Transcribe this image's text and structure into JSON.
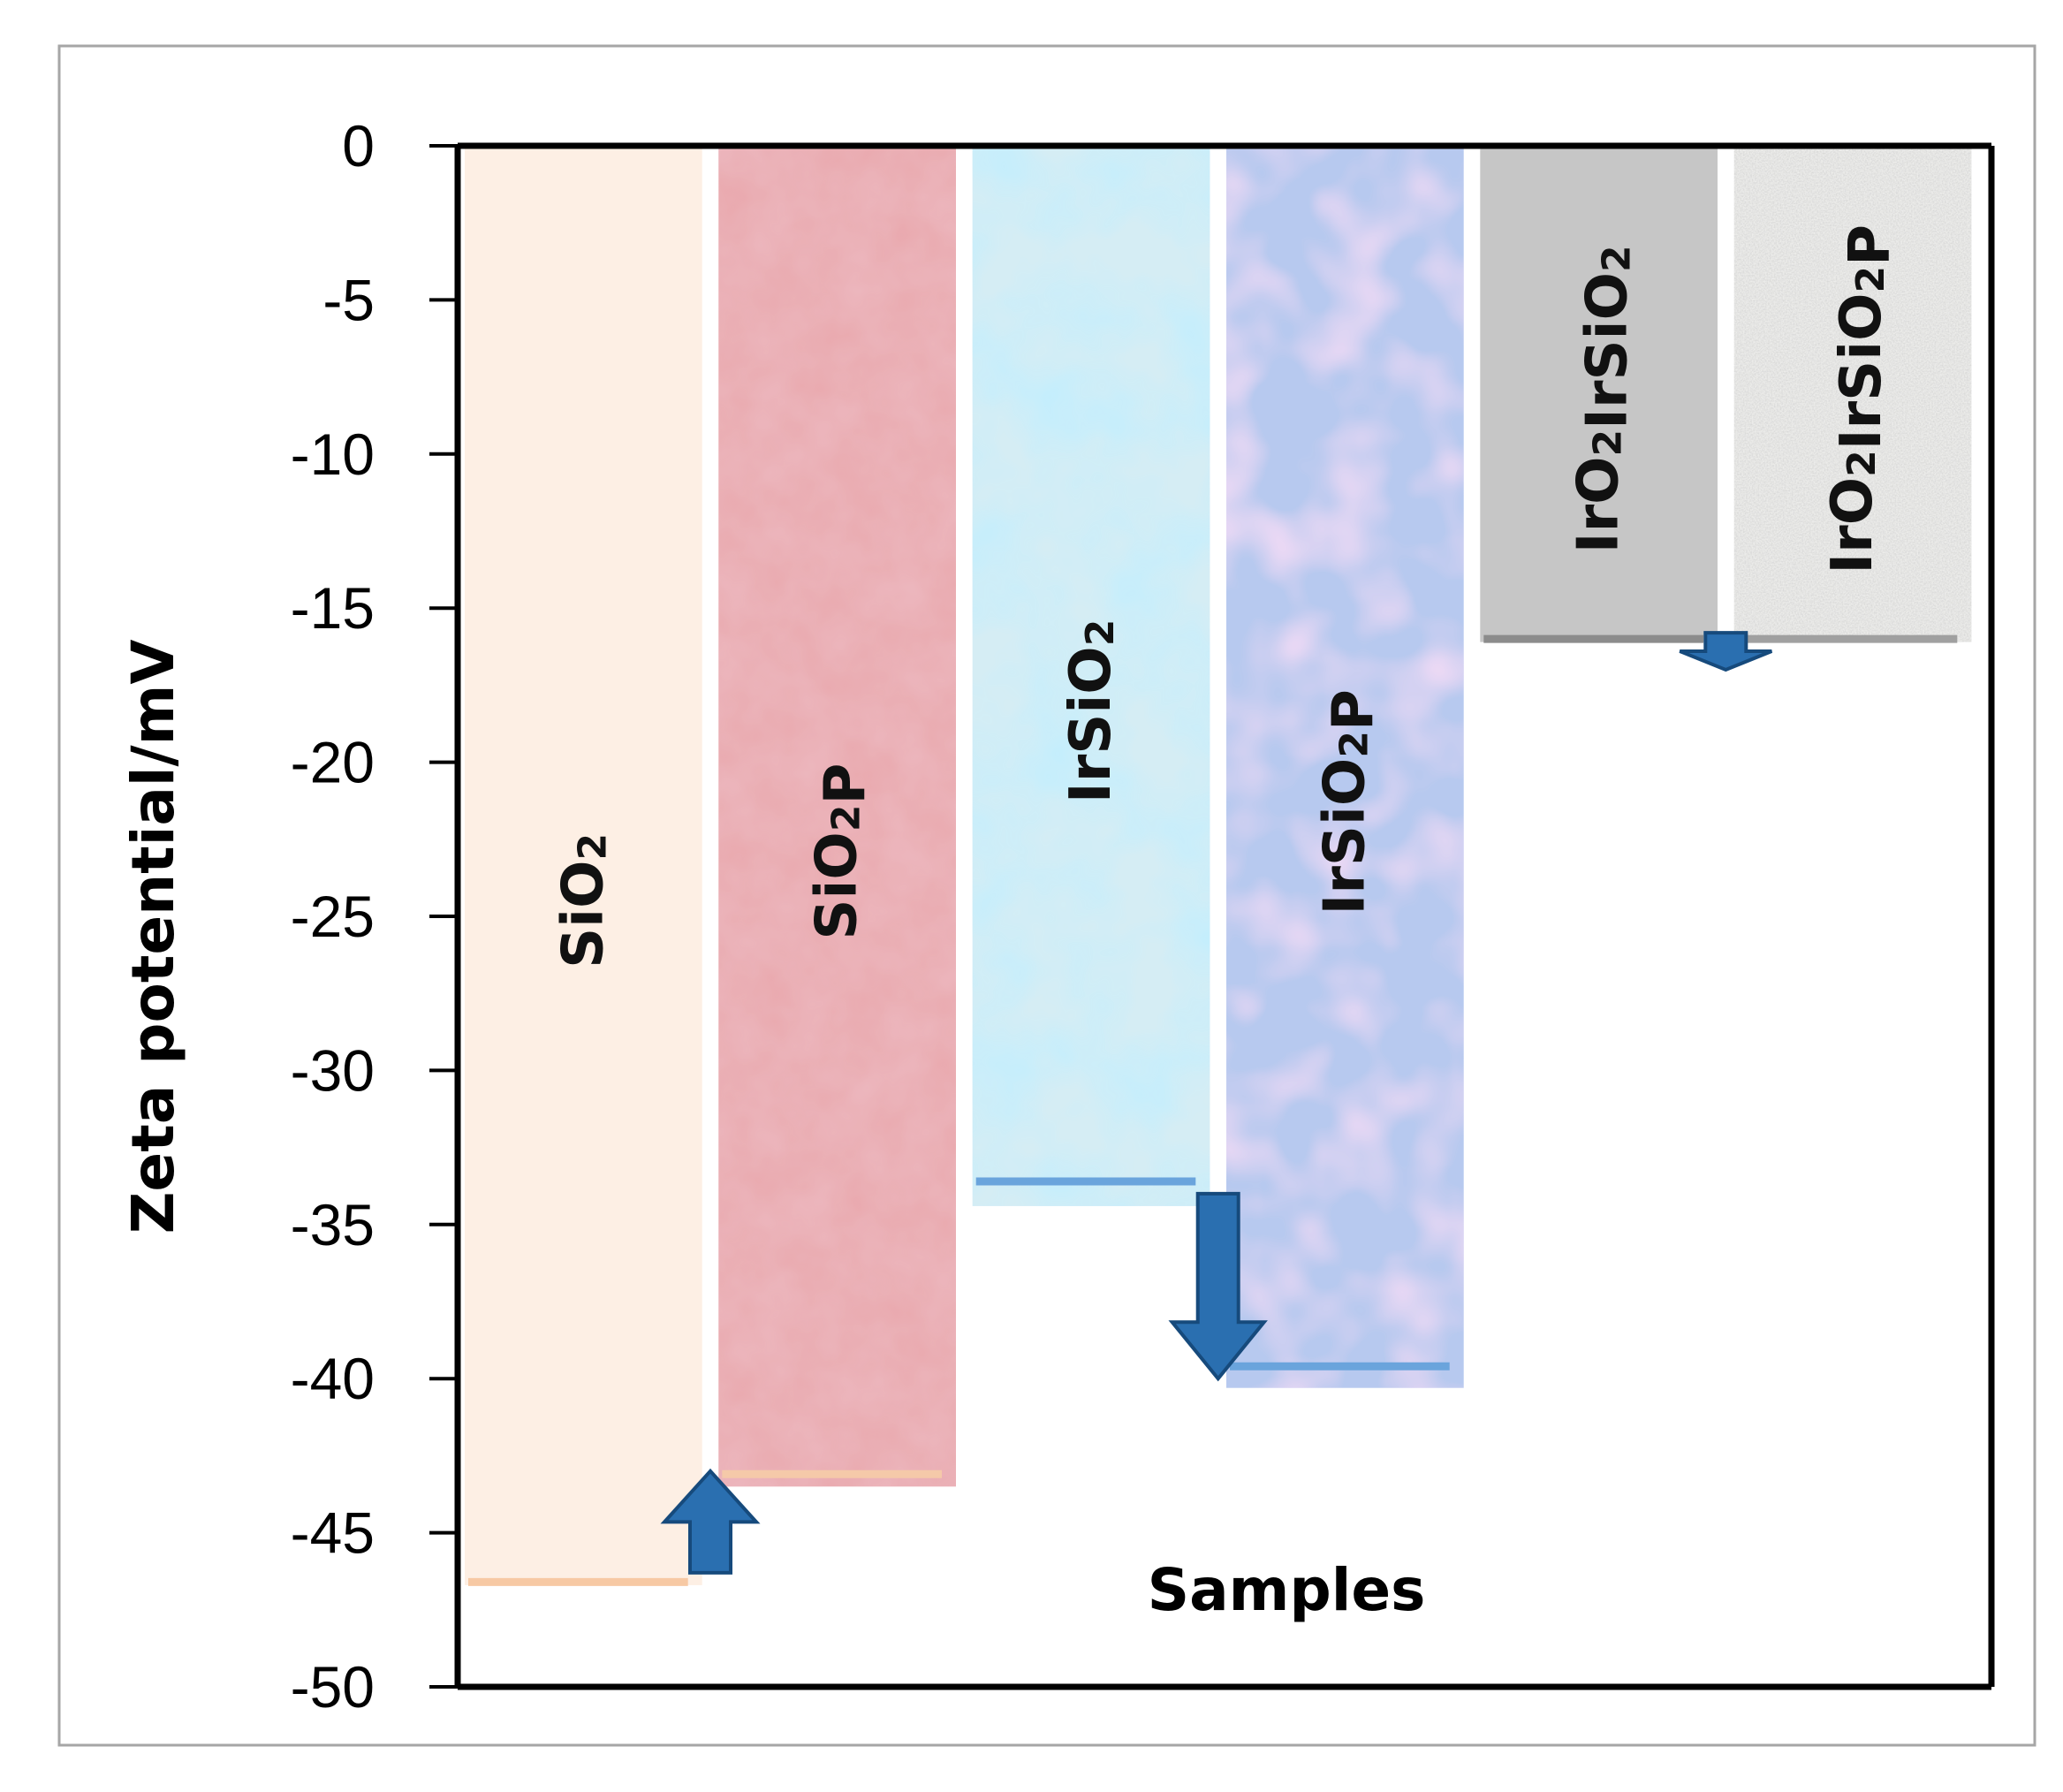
{
  "chart_data": {
    "type": "bar",
    "orientation": "vertical",
    "baseline": 0,
    "ylabel": "Zeta  potential/mV",
    "xlabel": "Samples",
    "ylim": [
      -50,
      0
    ],
    "yticks": [
      0,
      -5,
      -10,
      -15,
      -20,
      -25,
      -30,
      -35,
      -40,
      -45,
      -50
    ],
    "grid": false,
    "legend": "none",
    "categories": [
      {
        "name": "SiO2",
        "parts": [
          {
            "t": "SiO",
            "sub": false
          },
          {
            "t": "2",
            "sub": true
          }
        ]
      },
      {
        "name": "SiO2P",
        "parts": [
          {
            "t": "SiO",
            "sub": false
          },
          {
            "t": "2",
            "sub": true
          },
          {
            "t": "P",
            "sub": false
          }
        ]
      },
      {
        "name": "IrSiO2",
        "parts": [
          {
            "t": "IrSiO",
            "sub": false
          },
          {
            "t": "2",
            "sub": true
          }
        ]
      },
      {
        "name": "IrSiO2P",
        "parts": [
          {
            "t": "IrSiO",
            "sub": false
          },
          {
            "t": "2",
            "sub": true
          },
          {
            "t": "P",
            "sub": false
          }
        ]
      },
      {
        "name": "IrO2IrSiO2",
        "parts": [
          {
            "t": "IrO",
            "sub": false
          },
          {
            "t": "2",
            "sub": true
          },
          {
            "t": "IrSiO",
            "sub": false
          },
          {
            "t": "2",
            "sub": true
          }
        ]
      },
      {
        "name": "IrO2IrSiO2P",
        "parts": [
          {
            "t": "IrO",
            "sub": false
          },
          {
            "t": "2",
            "sub": true
          },
          {
            "t": "IrSiO",
            "sub": false
          },
          {
            "t": "2",
            "sub": true
          },
          {
            "t": "P",
            "sub": false
          }
        ]
      }
    ],
    "values": [
      -46.7,
      -43.5,
      -34.4,
      -40.3,
      -16.1,
      -16.1
    ],
    "mean_lines": [
      -46.6,
      -43.1,
      -33.6,
      -39.6,
      -16.0,
      -16.0
    ],
    "colors": {
      "bars": [
        "#fdefe4",
        "#e9a8ad",
        "#d5edf4",
        "#b7c9ef",
        "#c6c6c6",
        "#ececea"
      ],
      "lines": [
        "#f7c9a4",
        "#f5c9a9",
        "#6aa4dc",
        "#6aa4dc",
        "#8c8c8c",
        "#a0a0a0"
      ],
      "arrow": "#2a6fb0",
      "arrow_edge": "#164a7c",
      "axis": "#000000"
    },
    "arrows": [
      {
        "between": [
          0,
          1
        ],
        "direction": "up",
        "from": -46.3,
        "to": -43.0
      },
      {
        "between": [
          2,
          3
        ],
        "direction": "down",
        "from": -34.0,
        "to": -40.0
      },
      {
        "between": [
          4,
          5
        ],
        "direction": "down",
        "from": -15.8,
        "to": -17.0
      }
    ]
  }
}
